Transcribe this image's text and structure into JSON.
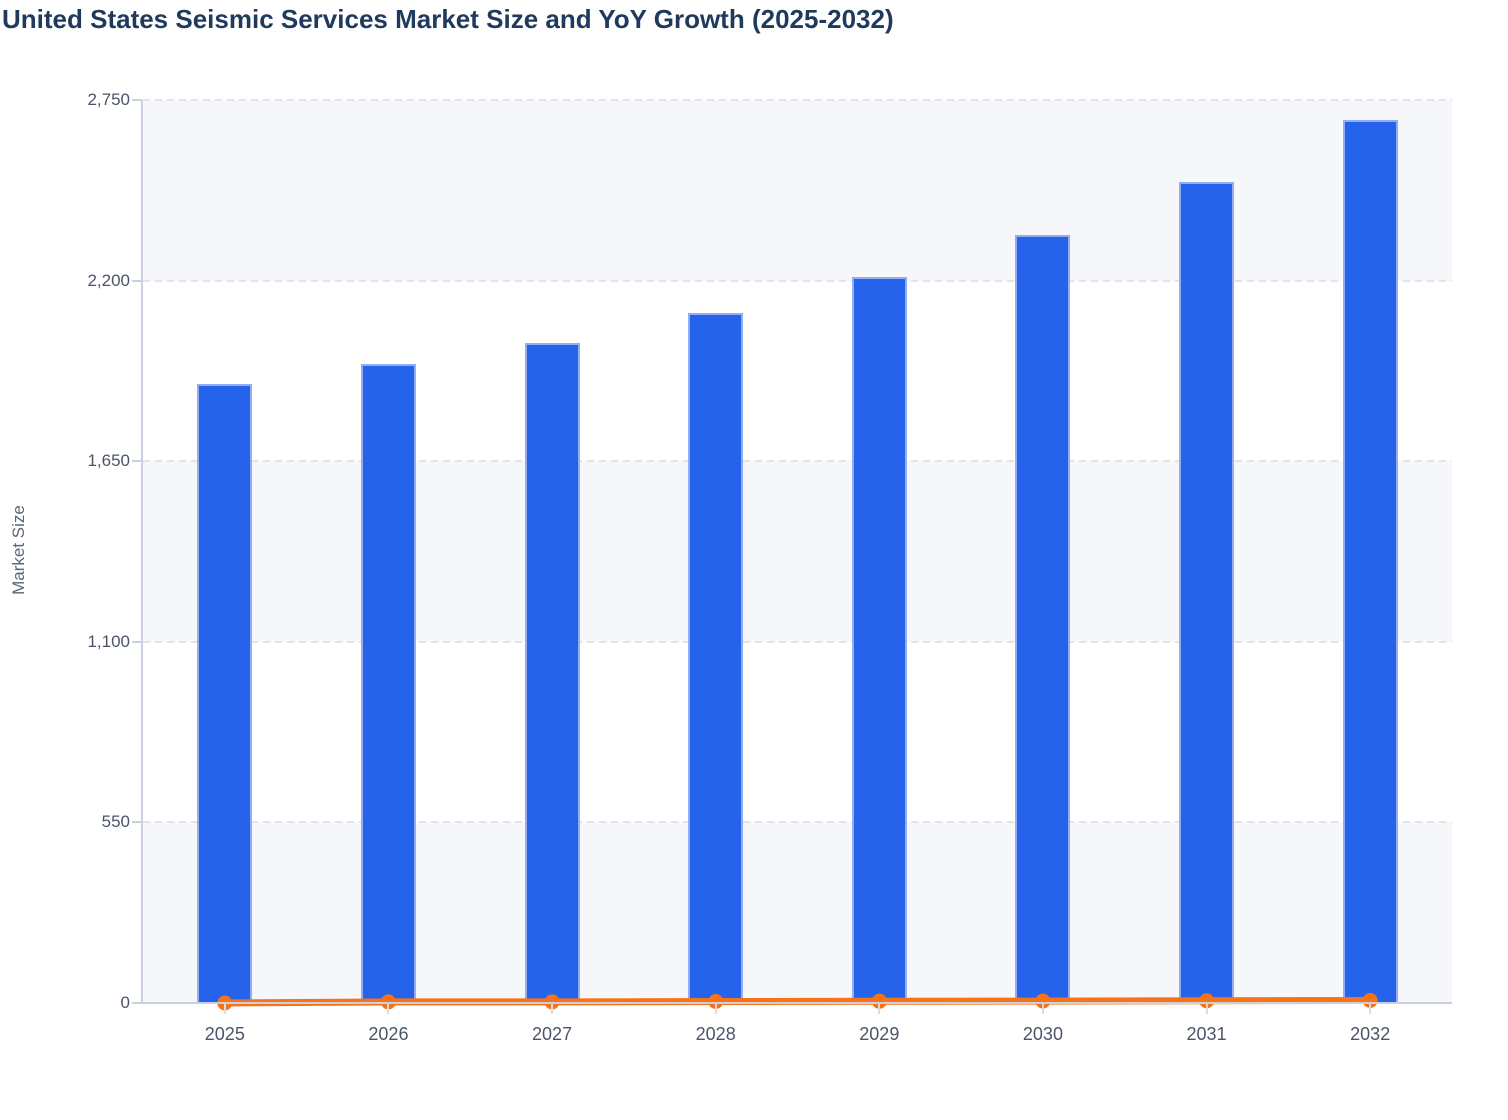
{
  "title": "United States Seismic Services Market Size and YoY Growth (2025-2032)",
  "chart_data": {
    "type": "bar",
    "title": "United States Seismic Services Market Size and YoY Growth (2025-2032)",
    "categories": [
      "2025",
      "2026",
      "2027",
      "2028",
      "2029",
      "2030",
      "2031",
      "2032"
    ],
    "series": [
      {
        "name": "Market Size",
        "type": "bar",
        "values": [
          1885,
          1945,
          2010,
          2100,
          2210,
          2340,
          2500,
          2690
        ],
        "color": "#2563eb"
      },
      {
        "name": "YoY Growth",
        "type": "line",
        "values": [
          0,
          3.2,
          3.3,
          4.5,
          5.2,
          5.9,
          6.8,
          7.6
        ],
        "color": "#f97316",
        "note": "plotted on the same 0-2750 axis, so it renders flat along the zero line with circular markers"
      }
    ],
    "xlabel": "",
    "ylabel": "Market Size",
    "ylim": [
      0,
      2750
    ],
    "y_ticks": {
      "values": [
        0,
        550,
        1100,
        1650,
        2200,
        2750
      ],
      "labels": [
        "0",
        "550",
        "1,100",
        "1,650",
        "2,200",
        "2,750"
      ]
    },
    "grid": "horizontal dashed gridlines at each y tick",
    "plot_bands": "horizontal bands alternating light-gray/white from top",
    "legend_position": "none"
  },
  "colors": {
    "bar_fill": "#2563eb",
    "bar_border": "#94acf0",
    "line": "#f97316",
    "axis_line": "#c9d0e2",
    "grid_dash": "#e2e4e9",
    "band_gray": "#f6f7fa",
    "band_white": "#ffffff",
    "tick_text": "#4a5568",
    "title_text": "#1f3a5c",
    "axis_title_text": "#5a6674"
  }
}
